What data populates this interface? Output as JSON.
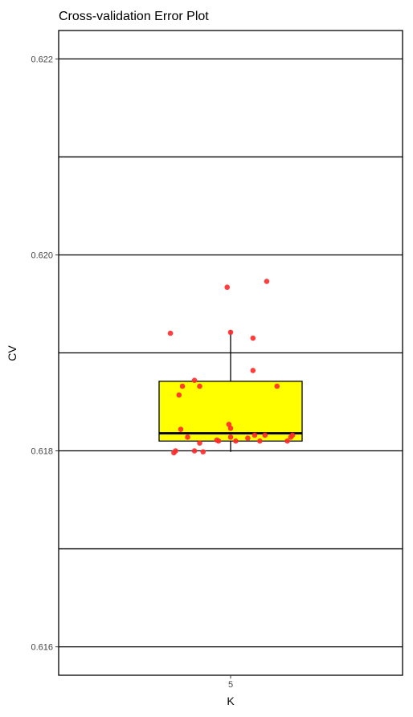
{
  "chart_data": {
    "type": "box",
    "title": "Cross-validation Error Plot",
    "xlabel": "K",
    "ylabel": "CV",
    "categories": [
      "5"
    ],
    "ylim": [
      0.61571,
      0.62229
    ],
    "yticks": [
      0.616,
      0.618,
      0.62,
      0.622
    ],
    "ytick_labels": [
      "0.616",
      "0.618",
      "0.620",
      "0.622"
    ],
    "minor_gridlines": [
      0.617,
      0.619,
      0.621
    ],
    "grid": true,
    "box": {
      "category": "5",
      "whisker_low": 0.61799,
      "q1": 0.6181,
      "median": 0.61818,
      "q3": 0.61871,
      "whisker_high": 0.61923,
      "fill": "#ffff00"
    },
    "points": {
      "color": "#ff2a2a",
      "jitter": [
        -0.35,
        -0.33,
        -0.32,
        -0.3,
        -0.29,
        -0.28,
        -0.25,
        -0.21,
        -0.21,
        -0.18,
        -0.18,
        -0.16,
        -0.08,
        -0.07,
        -0.02,
        -0.01,
        0.0,
        0.0,
        0.0,
        0.03,
        0.1,
        0.13,
        0.13,
        0.14,
        0.17,
        0.2,
        0.21,
        0.27,
        0.33,
        0.35,
        0.36
      ],
      "values": [
        0.6192,
        0.61798,
        0.618,
        0.61857,
        0.61822,
        0.61866,
        0.61814,
        0.61872,
        0.618,
        0.61808,
        0.61866,
        0.61799,
        0.61811,
        0.6181,
        0.61967,
        0.61827,
        0.61921,
        0.61823,
        0.61814,
        0.6181,
        0.61813,
        0.61882,
        0.61915,
        0.61816,
        0.6181,
        0.61816,
        0.61973,
        0.61866,
        0.6181,
        0.61814,
        0.61816
      ]
    }
  }
}
